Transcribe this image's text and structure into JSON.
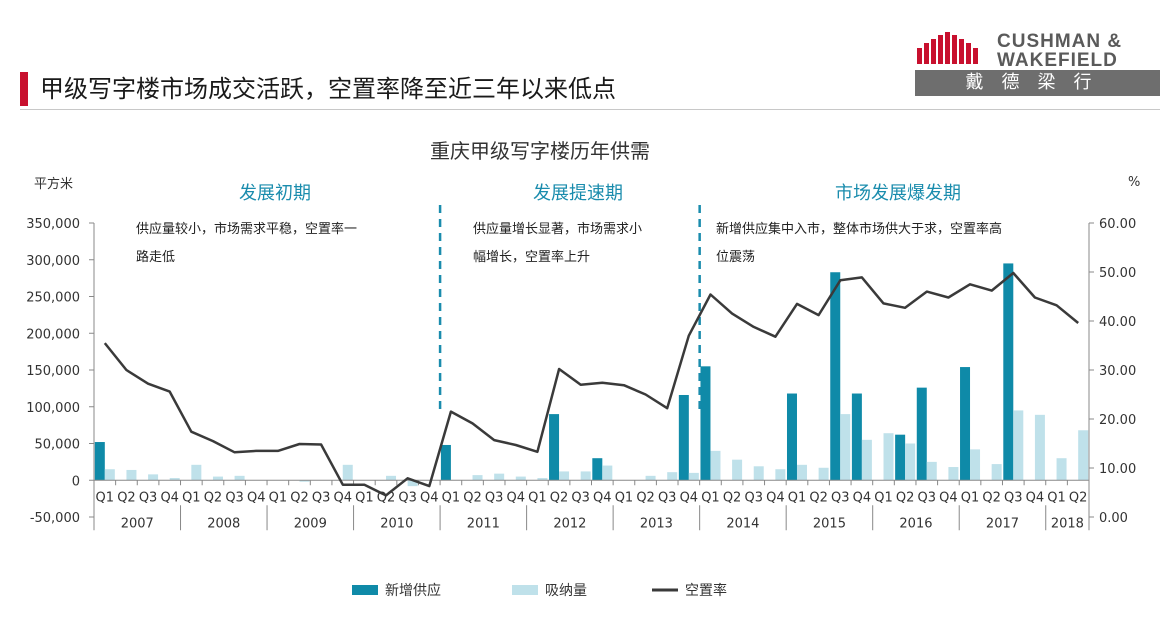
{
  "slide": {
    "title": "甲级写字楼市场成交活跃，空置率降至近三年以来低点"
  },
  "logo": {
    "brand_line1": "CUSHMAN &",
    "brand_line2": "WAKEFIELD",
    "brand_cn": "戴德梁行",
    "bar_color": "#c8102e"
  },
  "chart_data": {
    "type": "bar",
    "title": "重庆甲级写字楼历年供需",
    "ylabel_left": "平方米",
    "ylabel_right": "%",
    "ylim_left": [
      -50000,
      350000
    ],
    "ylim_right": [
      0,
      60
    ],
    "yticks_left": [
      "-50,000",
      "0",
      "50,000",
      "100,000",
      "150,000",
      "200,000",
      "250,000",
      "300,000",
      "350,000"
    ],
    "yticks_right": [
      "0.00",
      "10.00",
      "20.00",
      "30.00",
      "40.00",
      "50.00",
      "60.00"
    ],
    "quarters": [
      "Q1",
      "Q2",
      "Q3",
      "Q4",
      "Q1",
      "Q2",
      "Q3",
      "Q4",
      "Q1",
      "Q2",
      "Q3",
      "Q4",
      "Q1",
      "Q2",
      "Q3",
      "Q4",
      "Q1",
      "Q2",
      "Q3",
      "Q4",
      "Q1",
      "Q2",
      "Q3",
      "Q4",
      "Q1",
      "Q2",
      "Q3",
      "Q4",
      "Q1",
      "Q2",
      "Q3",
      "Q4",
      "Q1",
      "Q2",
      "Q3",
      "Q4",
      "Q1",
      "Q2",
      "Q3",
      "Q4",
      "Q1",
      "Q2",
      "Q3",
      "Q4",
      "Q1",
      "Q2"
    ],
    "years": [
      "2007",
      "2008",
      "2009",
      "2010",
      "2011",
      "2012",
      "2013",
      "2014",
      "2015",
      "2016",
      "2017",
      "2018"
    ],
    "series": [
      {
        "name": "新增供应",
        "color": "#0f8aa8",
        "values": [
          52000,
          0,
          0,
          0,
          0,
          0,
          0,
          0,
          0,
          0,
          0,
          0,
          0,
          0,
          0,
          0,
          48000,
          0,
          0,
          0,
          0,
          90000,
          0,
          30000,
          0,
          0,
          0,
          116000,
          155000,
          0,
          0,
          0,
          118000,
          0,
          283000,
          118000,
          0,
          62000,
          126000,
          0,
          154000,
          0,
          295000,
          0,
          0,
          0
        ]
      },
      {
        "name": "吸纳量",
        "color": "#bfe1ea",
        "values": [
          15000,
          14000,
          8000,
          3000,
          21000,
          5000,
          6000,
          0,
          0,
          -2000,
          0,
          21000,
          0,
          6000,
          -8000,
          0,
          0,
          7000,
          9000,
          5000,
          3000,
          12000,
          12000,
          20000,
          0,
          6000,
          11000,
          10000,
          40000,
          28000,
          19000,
          15000,
          21000,
          17000,
          90000,
          55000,
          64000,
          50000,
          25000,
          18000,
          42000,
          22000,
          95000,
          89000,
          30000,
          68000
        ]
      },
      {
        "name": "空置率",
        "color": "#3a3a3a",
        "values": [
          35.5,
          30.0,
          27.2,
          25.6,
          17.4,
          15.5,
          13.2,
          13.5,
          13.5,
          14.9,
          14.8,
          6.6,
          6.6,
          4.4,
          7.9,
          6.3,
          21.5,
          19.1,
          15.7,
          14.7,
          13.3,
          30.2,
          27.0,
          27.4,
          26.9,
          25.0,
          22.2,
          37.0,
          45.4,
          41.5,
          38.8,
          36.8,
          43.5,
          41.2,
          48.3,
          48.9,
          43.6,
          42.7,
          46.0,
          44.8,
          47.5,
          46.2,
          49.8,
          44.8,
          43.2,
          39.6
        ]
      }
    ],
    "phases": [
      {
        "name": "发展初期",
        "note_line1": "供应量较小，市场需求平稳，空置率一",
        "note_line2": "路走低"
      },
      {
        "name": "发展提速期",
        "note_line1": "供应量增长显著，市场需求小",
        "note_line2": "幅增长，空置率上升"
      },
      {
        "name": "市场发展爆发期",
        "note_line1": "新增供应集中入市，整体市场供大于求，空置率高",
        "note_line2": "位震荡"
      }
    ],
    "phase_title_color": "#1a8cad",
    "divider_color": "#1a8cad",
    "grid": false,
    "legend_position": "bottom"
  }
}
